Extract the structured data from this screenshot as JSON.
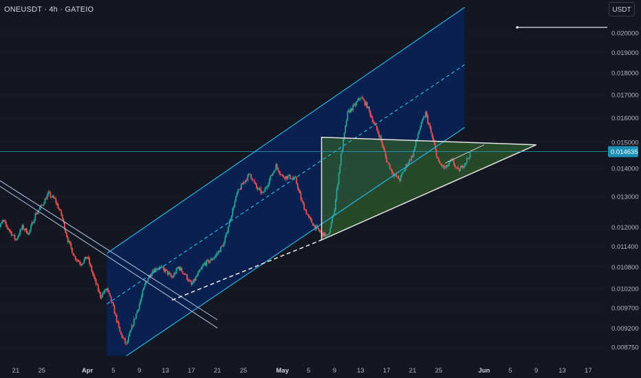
{
  "header": {
    "title": "ONEUSDT · 4h · GATEIO"
  },
  "price_scale": {
    "currency": "USDT",
    "last_price_label": "0.014635"
  },
  "colors": {
    "background": "#131722",
    "up": "#26a69a",
    "down": "#ef5350",
    "channel_line": "#22b8e8",
    "channel_fill": "#0a2254",
    "triangle_fill": "#2f5a2c",
    "triangle_line": "#e6e6e6",
    "price_line": "#2aa6c9"
  },
  "chart_data": {
    "type": "candlestick",
    "symbol": "ONEUSDT",
    "interval": "4h",
    "exchange": "GATEIO",
    "ylim": [
      0.0085,
      0.0215
    ],
    "y_scale": "log",
    "y_ticks": [
      {
        "v": 0.02,
        "t": "0.020000"
      },
      {
        "v": 0.019,
        "t": "0.019000"
      },
      {
        "v": 0.018,
        "t": "0.018000"
      },
      {
        "v": 0.017,
        "t": "0.017000"
      },
      {
        "v": 0.016,
        "t": "0.016000"
      },
      {
        "v": 0.015,
        "t": "0.015000"
      },
      {
        "v": 0.014,
        "t": "0.014000"
      },
      {
        "v": 0.013,
        "t": "0.013000"
      },
      {
        "v": 0.012,
        "t": "0.012000"
      },
      {
        "v": 0.0114,
        "t": "0.011400"
      },
      {
        "v": 0.0108,
        "t": "0.010800"
      },
      {
        "v": 0.0102,
        "t": "0.010200"
      },
      {
        "v": 0.0097,
        "t": "0.009700"
      },
      {
        "v": 0.0092,
        "t": "0.009200"
      },
      {
        "v": 0.00875,
        "t": "0.008750"
      }
    ],
    "x_ticks": [
      {
        "d": "2024-03-21",
        "t": "21",
        "m": false
      },
      {
        "d": "2024-03-25",
        "t": "25",
        "m": false
      },
      {
        "d": "2024-04-01",
        "t": "Apr",
        "m": true
      },
      {
        "d": "2024-04-05",
        "t": "5",
        "m": false
      },
      {
        "d": "2024-04-09",
        "t": "9",
        "m": false
      },
      {
        "d": "2024-04-13",
        "t": "13",
        "m": false
      },
      {
        "d": "2024-04-17",
        "t": "17",
        "m": false
      },
      {
        "d": "2024-04-21",
        "t": "21",
        "m": false
      },
      {
        "d": "2024-04-25",
        "t": "25",
        "m": false
      },
      {
        "d": "2024-05-01",
        "t": "May",
        "m": true
      },
      {
        "d": "2024-05-05",
        "t": "5",
        "m": false
      },
      {
        "d": "2024-05-09",
        "t": "9",
        "m": false
      },
      {
        "d": "2024-05-13",
        "t": "13",
        "m": false
      },
      {
        "d": "2024-05-17",
        "t": "17",
        "m": false
      },
      {
        "d": "2024-05-21",
        "t": "21",
        "m": false
      },
      {
        "d": "2024-05-25",
        "t": "25",
        "m": false
      },
      {
        "d": "2024-06-01",
        "t": "Jun",
        "m": true
      },
      {
        "d": "2024-06-05",
        "t": "5",
        "m": false
      },
      {
        "d": "2024-06-09",
        "t": "9",
        "m": false
      },
      {
        "d": "2024-06-13",
        "t": "13",
        "m": false
      },
      {
        "d": "2024-06-17",
        "t": "17",
        "m": false
      }
    ],
    "last_price": 0.014635,
    "price_path": [
      [
        "2024-03-18",
        0.0118
      ],
      [
        "2024-03-19",
        0.0122
      ],
      [
        "2024-03-20",
        0.0119
      ],
      [
        "2024-03-21",
        0.0116
      ],
      [
        "2024-03-22",
        0.012
      ],
      [
        "2024-03-23",
        0.0118
      ],
      [
        "2024-03-24",
        0.0124
      ],
      [
        "2024-03-25",
        0.0127
      ],
      [
        "2024-03-26",
        0.0131
      ],
      [
        "2024-03-27",
        0.0129
      ],
      [
        "2024-03-28",
        0.0124
      ],
      [
        "2024-03-29",
        0.0116
      ],
      [
        "2024-03-30",
        0.0111
      ],
      [
        "2024-03-31",
        0.0109
      ],
      [
        "2024-04-01",
        0.0111
      ],
      [
        "2024-04-02",
        0.0105
      ],
      [
        "2024-04-03",
        0.01
      ],
      [
        "2024-04-04",
        0.0102
      ],
      [
        "2024-04-05",
        0.0097
      ],
      [
        "2024-04-06",
        0.0091
      ],
      [
        "2024-04-07",
        0.0088
      ],
      [
        "2024-04-08",
        0.0093
      ],
      [
        "2024-04-09",
        0.0098
      ],
      [
        "2024-04-10",
        0.0104
      ],
      [
        "2024-04-11",
        0.0107
      ],
      [
        "2024-04-12",
        0.0108
      ],
      [
        "2024-04-13",
        0.0107
      ],
      [
        "2024-04-14",
        0.0105
      ],
      [
        "2024-04-15",
        0.0108
      ],
      [
        "2024-04-16",
        0.0106
      ],
      [
        "2024-04-17",
        0.0103
      ],
      [
        "2024-04-18",
        0.0106
      ],
      [
        "2024-04-19",
        0.0109
      ],
      [
        "2024-04-20",
        0.011
      ],
      [
        "2024-04-21",
        0.0112
      ],
      [
        "2024-04-22",
        0.0115
      ],
      [
        "2024-04-23",
        0.0123
      ],
      [
        "2024-04-24",
        0.0131
      ],
      [
        "2024-04-25",
        0.0135
      ],
      [
        "2024-04-26",
        0.0138
      ],
      [
        "2024-04-27",
        0.0133
      ],
      [
        "2024-04-28",
        0.0131
      ],
      [
        "2024-04-29",
        0.0136
      ],
      [
        "2024-04-30",
        0.0141
      ],
      [
        "2024-05-01",
        0.0137
      ],
      [
        "2024-05-02",
        0.0137
      ],
      [
        "2024-05-03",
        0.0136
      ],
      [
        "2024-05-04",
        0.0128
      ],
      [
        "2024-05-05",
        0.0123
      ],
      [
        "2024-05-06",
        0.012
      ],
      [
        "2024-05-07",
        0.0118
      ],
      [
        "2024-05-08",
        0.0117
      ],
      [
        "2024-05-09",
        0.0126
      ],
      [
        "2024-05-10",
        0.0145
      ],
      [
        "2024-05-11",
        0.0162
      ],
      [
        "2024-05-12",
        0.0165
      ],
      [
        "2024-05-13",
        0.0169
      ],
      [
        "2024-05-14",
        0.0165
      ],
      [
        "2024-05-15",
        0.0158
      ],
      [
        "2024-05-16",
        0.0152
      ],
      [
        "2024-05-17",
        0.0143
      ],
      [
        "2024-05-18",
        0.0138
      ],
      [
        "2024-05-19",
        0.0136
      ],
      [
        "2024-05-20",
        0.0141
      ],
      [
        "2024-05-21",
        0.0145
      ],
      [
        "2024-05-22",
        0.0155
      ],
      [
        "2024-05-23",
        0.0162
      ],
      [
        "2024-05-24",
        0.0152
      ],
      [
        "2024-05-25",
        0.0142
      ],
      [
        "2024-05-26",
        0.014
      ],
      [
        "2024-05-27",
        0.0143
      ],
      [
        "2024-05-28",
        0.0139
      ],
      [
        "2024-05-29",
        0.0142
      ],
      [
        "2024-05-30",
        0.0146
      ]
    ],
    "drawings": {
      "ascending_channel": {
        "lower": [
          [
            "2024-04-07",
            0.00855
          ],
          [
            "2024-05-29",
            0.0156
          ]
        ],
        "upper": [
          [
            "2024-04-04",
            0.0112
          ],
          [
            "2024-05-29",
            0.0214
          ]
        ],
        "median": [
          [
            "2024-04-04",
            0.0098
          ],
          [
            "2024-05-29",
            0.0184
          ]
        ]
      },
      "triangle": [
        [
          "2024-05-07",
          0.0152
        ],
        [
          "2024-06-09",
          0.0149
        ],
        [
          "2024-05-07",
          0.0116
        ]
      ],
      "descending_channel": {
        "upper": [
          [
            "2024-03-15",
            0.0141
          ],
          [
            "2024-04-21",
            0.0094
          ]
        ],
        "lower": [
          [
            "2024-03-15",
            0.0139
          ],
          [
            "2024-04-21",
            0.0092
          ]
        ]
      },
      "support_dashed": [
        [
          "2024-04-14",
          0.0099
        ],
        [
          "2024-05-07",
          0.0116
        ]
      ],
      "wedge_top": [
        [
          "2024-05-26",
          0.0142
        ],
        [
          "2024-06-01",
          0.0149
        ]
      ],
      "marker_line_value": 0.0203
    }
  }
}
